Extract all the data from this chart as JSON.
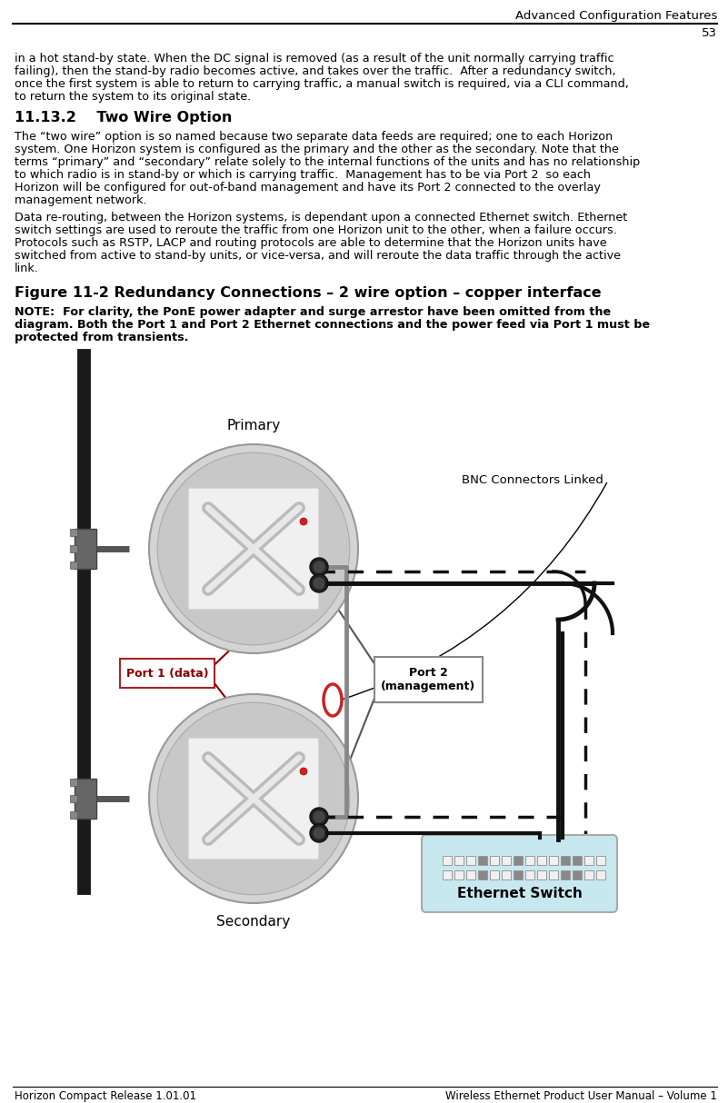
{
  "header_title": "Advanced Configuration Features",
  "header_page": "53",
  "footer_left": "Horizon Compact Release 1.01.01",
  "footer_right": "Wireless Ethernet Product User Manual – Volume 1",
  "section_heading": "11.13.2    Two Wire Option",
  "para1_lines": [
    "in a hot stand-by state. When the DC signal is removed (as a result of the unit normally carrying traffic",
    "failing), then the stand-by radio becomes active, and takes over the traffic.  After a redundancy switch,",
    "once the first system is able to return to carrying traffic, a manual switch is required, via a CLI command,",
    "to return the system to its original state."
  ],
  "para2_lines": [
    "The “two wire” option is so named because two separate data feeds are required; one to each Horizon",
    "system. One Horizon system is configured as the primary and the other as the secondary. Note that the",
    "terms “primary” and “secondary” relate solely to the internal functions of the units and has no relationship",
    "to which radio is in stand-by or which is carrying traffic.  Management has to be via Port 2  so each",
    "Horizon will be configured for out-of-band management and have its Port 2 connected to the overlay",
    "management network."
  ],
  "para3_lines": [
    "Data re-routing, between the Horizon systems, is dependant upon a connected Ethernet switch. Ethernet",
    "switch settings are used to reroute the traffic from one Horizon unit to the other, when a failure occurs.",
    "Protocols such as RSTP, LACP and routing protocols are able to determine that the Horizon units have",
    "switched from active to stand-by units, or vice-versa, and will reroute the data traffic through the active",
    "link."
  ],
  "figure_caption": "Figure 11-2 Redundancy Connections – 2 wire option – copper interface",
  "note_lines": [
    "NOTE:  For clarity, the PonE power adapter and surge arrestor have been omitted from the",
    "diagram. Both the Port 1 and Port 2 Ethernet connections and the power feed via Port 1 must be",
    "protected from transients."
  ],
  "label_primary": "Primary",
  "label_secondary": "Secondary",
  "label_port1": "Port 1 (data)",
  "label_port2": "Port 2\n(management)",
  "label_bnc": "BNC Connectors Linked",
  "label_switch": "Ethernet Switch",
  "bg_color": "#ffffff",
  "text_color": "#000000",
  "body_fontsize": 9.2,
  "body_lineheight": 14.0,
  "heading_fontsize": 11.5,
  "note_fontsize": 9.2,
  "caption_fontsize": 11.5,
  "header_fontsize": 9.5,
  "footer_fontsize": 8.5
}
